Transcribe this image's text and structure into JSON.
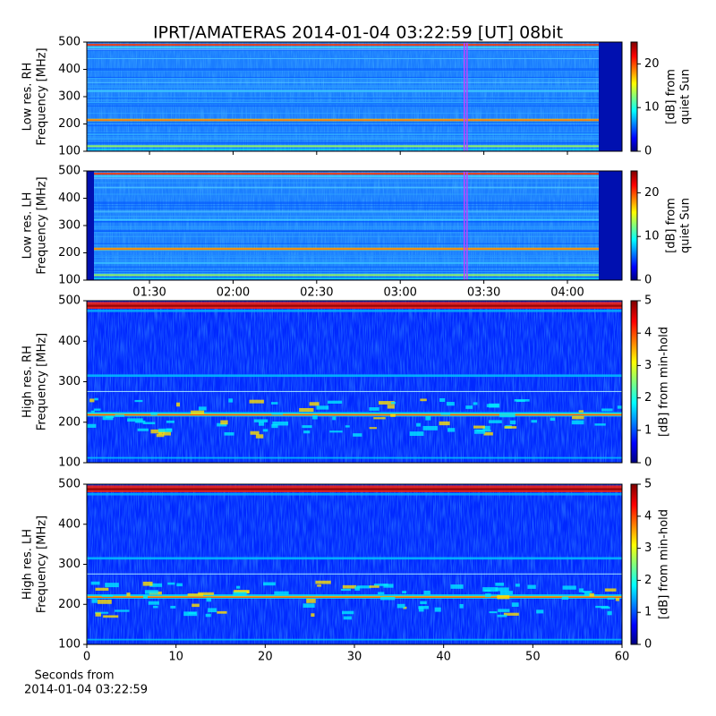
{
  "chart_data": [
    {
      "type": "spectrogram",
      "title": "IPRT/AMATERAS 2014-01-04 03:22:59 [UT]   08bit",
      "ylabel": [
        "Low res. RH",
        "Frequency [MHz]"
      ],
      "ylim": [
        100,
        500
      ],
      "yticks": [
        100,
        200,
        300,
        400,
        500
      ],
      "xlim": [
        67.5,
        259.6
      ],
      "marker_x": [
        202.98,
        203.98
      ],
      "marker_color": "#c040ff",
      "colorbar_label": [
        "[dB] from",
        "quiet Sun"
      ],
      "clim": [
        0,
        25
      ],
      "cticks": [
        0,
        10,
        20
      ]
    },
    {
      "type": "spectrogram",
      "ylabel": [
        "Low res. LH",
        "Frequency [MHz]"
      ],
      "ylim": [
        100,
        500
      ],
      "yticks": [
        100,
        200,
        300,
        400,
        500
      ],
      "xlim": [
        67.5,
        259.6
      ],
      "xticks": [
        {
          "value": 90,
          "label": "01:30"
        },
        {
          "value": 120,
          "label": "02:00"
        },
        {
          "value": 150,
          "label": "02:30"
        },
        {
          "value": 180,
          "label": "03:00"
        },
        {
          "value": 210,
          "label": "03:30"
        },
        {
          "value": 240,
          "label": "04:00"
        }
      ],
      "marker_x": [
        202.98,
        203.98
      ],
      "marker_color": "#c040ff",
      "colorbar_label": [
        "[dB] from",
        "quiet Sun"
      ],
      "clim": [
        0,
        25
      ],
      "cticks": [
        0,
        10,
        20
      ]
    },
    {
      "type": "spectrogram",
      "ylabel": [
        "High res. RH",
        "Frequency [MHz]"
      ],
      "ylim": [
        100,
        500
      ],
      "yticks": [
        100,
        200,
        300,
        400,
        500
      ],
      "xlim": [
        0,
        60
      ],
      "colorbar_label": [
        "[dB] from min-hold"
      ],
      "clim": [
        0,
        5
      ],
      "cticks": [
        0,
        1,
        2,
        3,
        4,
        5
      ]
    },
    {
      "type": "spectrogram",
      "ylabel": [
        "High res. LH",
        "Frequency [MHz]"
      ],
      "ylim": [
        100,
        500
      ],
      "yticks": [
        100,
        200,
        300,
        400,
        500
      ],
      "xlim": [
        0,
        60
      ],
      "xticks": [
        0,
        10,
        20,
        30,
        40,
        50,
        60
      ],
      "xlabel": [
        "Seconds from",
        "2014-01-04 03:22:59"
      ],
      "colorbar_label": [
        "[dB] from min-hold"
      ],
      "clim": [
        0,
        5
      ],
      "cticks": [
        0,
        1,
        2,
        3,
        4,
        5
      ]
    }
  ]
}
